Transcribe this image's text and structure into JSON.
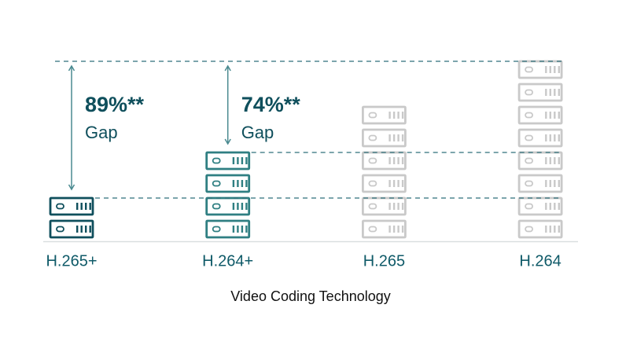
{
  "chart_data": {
    "type": "pictogram",
    "x_label": "Video Coding Technology",
    "categories": [
      "H.265+",
      "H.264+",
      "H.265",
      "H.264"
    ],
    "values": [
      2,
      4,
      6,
      8
    ],
    "colors": [
      "#0f4f5c",
      "#2f7f82",
      "#c9c9c9",
      "#c9c9c9"
    ],
    "annotations": [
      {
        "category": 0,
        "text": "89%**",
        "sub": "Gap"
      },
      {
        "category": 1,
        "text": "74%**",
        "sub": "Gap"
      }
    ]
  }
}
